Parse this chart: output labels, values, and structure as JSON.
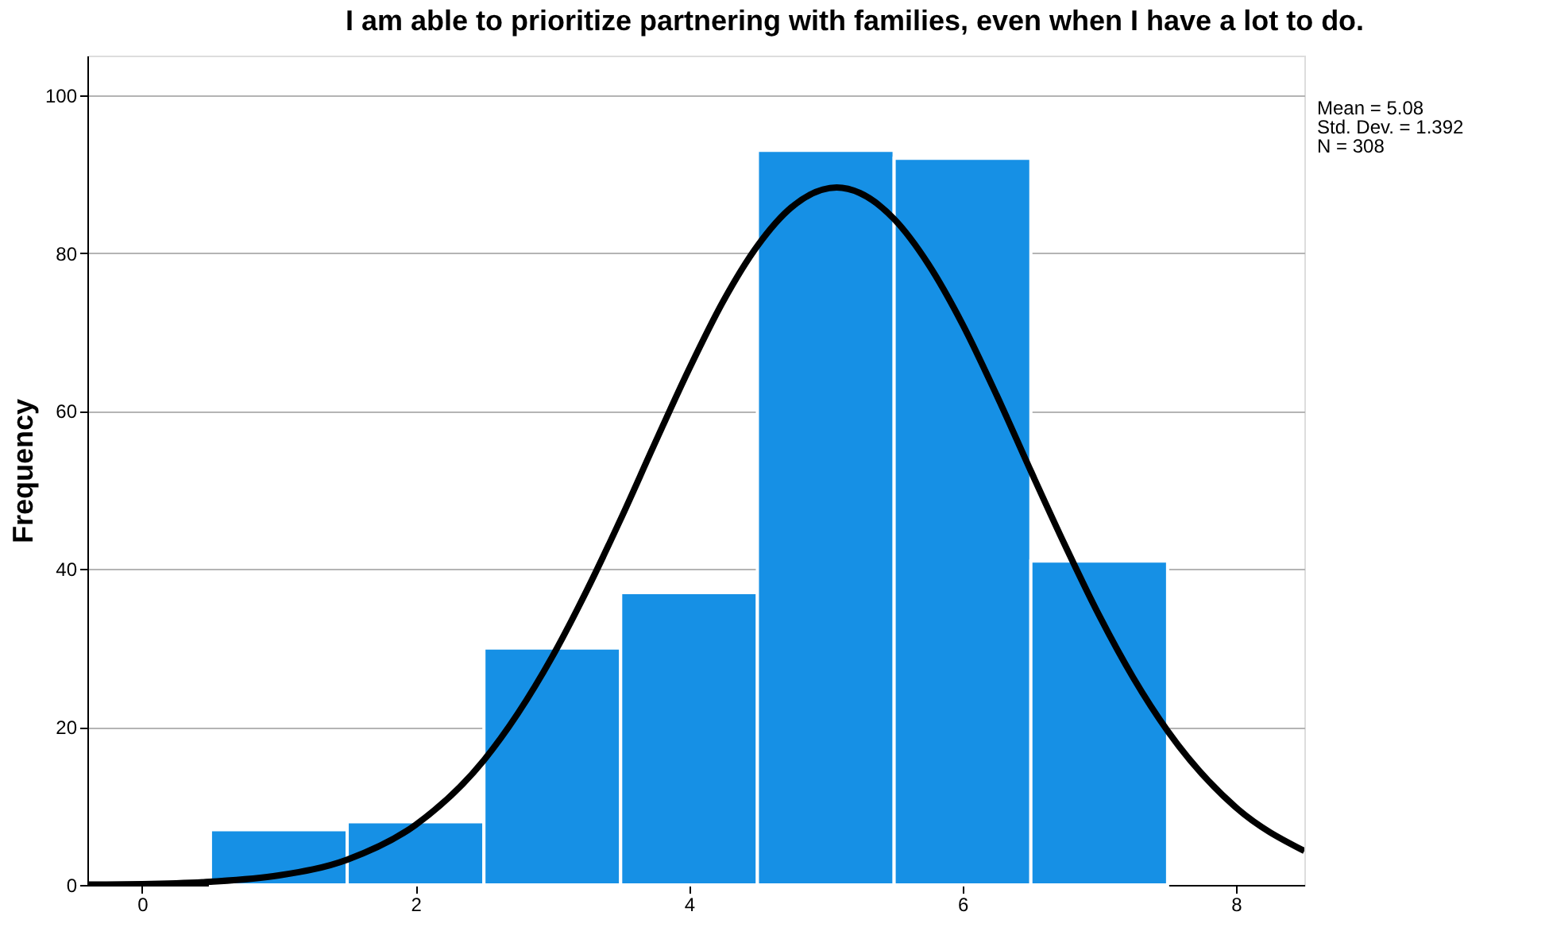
{
  "chart_data": {
    "type": "histogram",
    "title": "I am able to prioritize partnering with families, even when I have a lot to do.",
    "ylabel": "Frequency",
    "bins": [
      0.5,
      1.5,
      2.5,
      3.5,
      4.5,
      5.5,
      6.5,
      7.5
    ],
    "values": [
      7,
      8,
      30,
      37,
      93,
      92,
      41
    ],
    "color": "#1690e5",
    "series": [
      {
        "type": "line",
        "color": "#000000",
        "x": [
          -0.4,
          0,
          0.5,
          1,
          1.5,
          2,
          2.5,
          3,
          3.25,
          3.5,
          3.75,
          4,
          4.25,
          4.5,
          4.75,
          5.08,
          5.25,
          5.5,
          5.75,
          6,
          6.25,
          6.5,
          6.75,
          7,
          7.25,
          7.5,
          8,
          8.5
        ],
        "values": [
          0.04,
          0.1,
          0.4,
          1.2,
          3.2,
          7.6,
          15.8,
          28.9,
          37.2,
          46.3,
          55.9,
          65.3,
          73.9,
          80.9,
          85.8,
          88.3,
          87.6,
          84.3,
          78.6,
          71.0,
          62.0,
          52.4,
          43.0,
          34.1,
          26.2,
          19.5,
          9.8,
          4.3
        ]
      }
    ],
    "xlim": [
      -0.4,
      8.5
    ],
    "xticks": [
      0,
      2,
      4,
      6,
      8
    ],
    "ylim": [
      0,
      105
    ],
    "yticks": [
      0,
      20,
      40,
      60,
      80,
      100
    ],
    "grid": "y",
    "annotations": [
      "Mean = 5.08",
      "Std. Dev. = 1.392",
      "N = 308"
    ]
  }
}
